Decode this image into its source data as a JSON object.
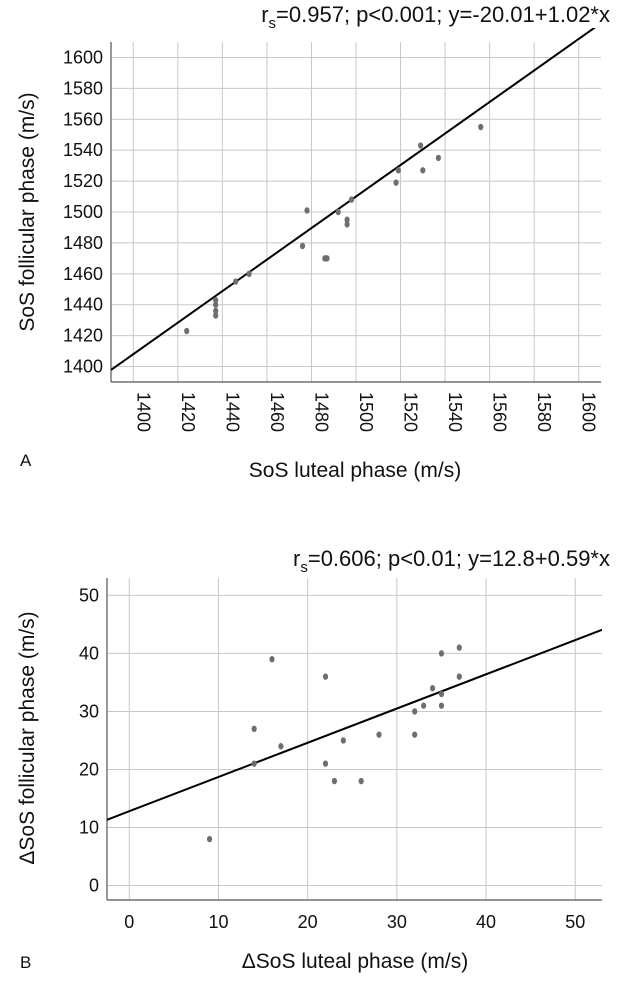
{
  "chart_data": [
    {
      "panel_label": "A",
      "type": "scatter",
      "title": "r",
      "title_sub": "s",
      "title_rest": "=0.957; p<0.001; y=-20.01+1.02*x",
      "xlabel": "SoS luteal phase (m/s)",
      "ylabel": "SoS follicular phase (m/s)",
      "xlim": [
        1390,
        1610
      ],
      "ylim": [
        1390,
        1610
      ],
      "xticks": [
        1400,
        1420,
        1440,
        1460,
        1480,
        1500,
        1520,
        1540,
        1560,
        1580,
        1600
      ],
      "yticks": [
        1400,
        1420,
        1440,
        1460,
        1480,
        1500,
        1520,
        1540,
        1560,
        1580,
        1600
      ],
      "grid": true,
      "fit_line": {
        "intercept": -20.01,
        "slope": 1.02
      },
      "points": [
        {
          "x": 1424,
          "y": 1423
        },
        {
          "x": 1437,
          "y": 1443
        },
        {
          "x": 1437,
          "y": 1440
        },
        {
          "x": 1437,
          "y": 1436
        },
        {
          "x": 1437,
          "y": 1433
        },
        {
          "x": 1446,
          "y": 1455
        },
        {
          "x": 1452,
          "y": 1460
        },
        {
          "x": 1476,
          "y": 1478
        },
        {
          "x": 1478,
          "y": 1501
        },
        {
          "x": 1486,
          "y": 1470
        },
        {
          "x": 1487,
          "y": 1470
        },
        {
          "x": 1492,
          "y": 1500
        },
        {
          "x": 1496,
          "y": 1495
        },
        {
          "x": 1496,
          "y": 1492
        },
        {
          "x": 1498,
          "y": 1508
        },
        {
          "x": 1518,
          "y": 1519
        },
        {
          "x": 1519,
          "y": 1527
        },
        {
          "x": 1529,
          "y": 1543
        },
        {
          "x": 1530,
          "y": 1527
        },
        {
          "x": 1537,
          "y": 1535
        },
        {
          "x": 1556,
          "y": 1555
        }
      ]
    },
    {
      "panel_label": "B",
      "type": "scatter",
      "title": "r",
      "title_sub": "s",
      "title_rest": "=0.606; p<0.01; y=12.8+0.59*x",
      "xlabel": "ΔSoS luteal phase  (m/s)",
      "ylabel": "ΔSoS follicular phase  (m/s)",
      "xlim": [
        -2.5,
        53
      ],
      "ylim": [
        -2.5,
        53
      ],
      "xticks": [
        0,
        10,
        20,
        30,
        40,
        50
      ],
      "yticks": [
        0,
        10,
        20,
        30,
        40,
        50
      ],
      "grid": true,
      "fit_line": {
        "intercept": 12.8,
        "slope": 0.59
      },
      "points": [
        {
          "x": 9,
          "y": 8
        },
        {
          "x": 14,
          "y": 27
        },
        {
          "x": 14,
          "y": 21
        },
        {
          "x": 16,
          "y": 39
        },
        {
          "x": 17,
          "y": 24
        },
        {
          "x": 22,
          "y": 36
        },
        {
          "x": 22,
          "y": 21
        },
        {
          "x": 23,
          "y": 18
        },
        {
          "x": 24,
          "y": 25
        },
        {
          "x": 26,
          "y": 18
        },
        {
          "x": 28,
          "y": 26
        },
        {
          "x": 32,
          "y": 30
        },
        {
          "x": 32,
          "y": 26
        },
        {
          "x": 33,
          "y": 31
        },
        {
          "x": 34,
          "y": 34
        },
        {
          "x": 35,
          "y": 40
        },
        {
          "x": 35,
          "y": 33
        },
        {
          "x": 35,
          "y": 31
        },
        {
          "x": 37,
          "y": 41
        },
        {
          "x": 37,
          "y": 36
        }
      ]
    }
  ],
  "colors": {
    "point": "#6e6e6e",
    "grid": "#c8c8c8",
    "axis": "#555555",
    "fit": "#000000"
  }
}
